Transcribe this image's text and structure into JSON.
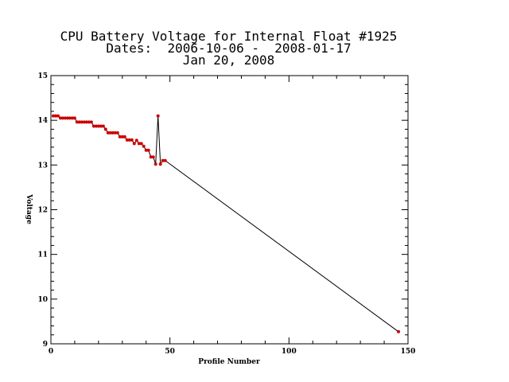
{
  "chart_data": {
    "type": "line",
    "title_lines": [
      "CPU Battery Voltage for Internal Float #1925",
      "Dates:  2006-10-06 -  2008-01-17",
      "Jan 20, 2008"
    ],
    "xlabel": "Profile Number",
    "ylabel": "Voltage",
    "xlim": [
      0,
      150
    ],
    "ylim": [
      9,
      15
    ],
    "x_ticks": [
      0,
      50,
      100,
      150
    ],
    "y_ticks": [
      9,
      10,
      11,
      12,
      13,
      14,
      15
    ],
    "marker_color": "#cc0000",
    "line_color": "#000000",
    "series": [
      {
        "x": [
          1,
          2,
          3,
          4,
          5,
          6,
          7,
          8,
          9,
          10,
          11,
          12,
          13,
          14,
          15,
          16,
          17,
          18,
          19,
          20,
          21,
          22,
          23,
          24,
          25,
          26,
          27,
          28,
          29,
          30,
          31,
          32,
          33,
          34,
          35,
          36,
          37,
          38,
          39,
          40,
          41,
          42,
          43,
          44,
          45,
          46,
          47,
          48,
          146
        ],
        "y": [
          14.1,
          14.1,
          14.1,
          14.05,
          14.05,
          14.05,
          14.05,
          14.05,
          14.05,
          14.05,
          13.96,
          13.96,
          13.96,
          13.96,
          13.96,
          13.96,
          13.96,
          13.87,
          13.87,
          13.87,
          13.87,
          13.87,
          13.8,
          13.72,
          13.72,
          13.72,
          13.72,
          13.72,
          13.63,
          13.63,
          13.63,
          13.56,
          13.56,
          13.56,
          13.48,
          13.55,
          13.48,
          13.48,
          13.42,
          13.33,
          13.33,
          13.18,
          13.18,
          13.02,
          14.1,
          13.02,
          13.1,
          13.1,
          9.27
        ]
      }
    ]
  }
}
